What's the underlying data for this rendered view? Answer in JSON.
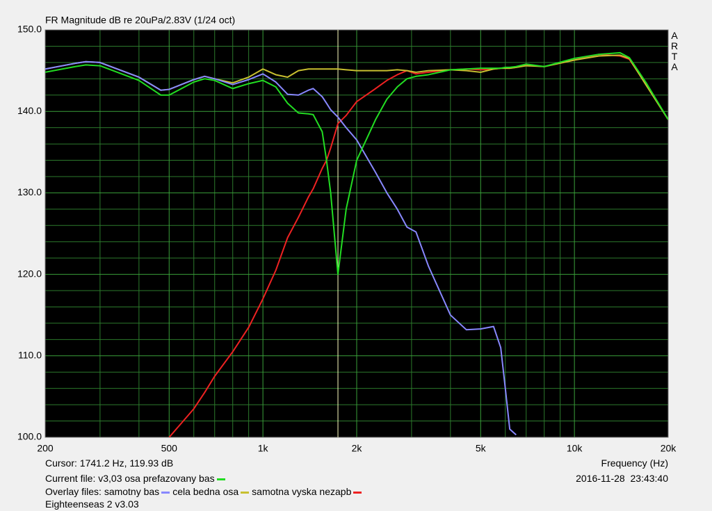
{
  "chart_data": {
    "type": "line",
    "title": "FR Magnitude dB re 20uPa/2.83V (1/24 oct)",
    "brand": "ARTA",
    "xlabel": "Frequency (Hz)",
    "cursor_text": "Cursor: 1741.2 Hz, 119.93 dB",
    "cursor_x": 1741.2,
    "cursor_color": "#ffffc0",
    "timestamp": "2016-11-28  23:43:40",
    "current_label": "Current file:",
    "overlay_label": "Overlay files:",
    "footer": "Eighteenseas 2 v3.03",
    "xscale": "log",
    "grid": true,
    "xlim": [
      200,
      20000
    ],
    "ylim": [
      100,
      150
    ],
    "xticks": [
      200,
      500,
      {
        "value": 1000,
        "label": "1k"
      },
      {
        "value": 2000,
        "label": "2k"
      },
      {
        "value": 5000,
        "label": "5k"
      },
      {
        "value": 10000,
        "label": "10k"
      },
      {
        "value": 20000,
        "label": "20k"
      }
    ],
    "xminorticks": [
      300,
      400,
      600,
      700,
      800,
      900,
      3000,
      4000,
      6000,
      7000,
      8000,
      9000
    ],
    "yticks": [
      {
        "value": 100,
        "label": "100.0"
      },
      {
        "value": 110,
        "label": "110.0"
      },
      {
        "value": 120,
        "label": "120.0"
      },
      {
        "value": 130,
        "label": "130.0"
      },
      {
        "value": 140,
        "label": "140.0"
      },
      {
        "value": 150,
        "label": "150.0"
      }
    ],
    "yminorticks": [
      102,
      104,
      106,
      108,
      112,
      114,
      116,
      118,
      122,
      124,
      126,
      128,
      132,
      134,
      136,
      138,
      142,
      144,
      146,
      148
    ],
    "x": [
      200,
      250,
      270,
      300,
      400,
      470,
      500,
      600,
      650,
      700,
      800,
      900,
      1000,
      1100,
      1200,
      1300,
      1400,
      1450,
      1550,
      1600,
      1650,
      1741,
      1850,
      2000,
      2300,
      2500,
      2700,
      2900,
      3100,
      3400,
      4000,
      4500,
      5000,
      5500,
      5800,
      6000,
      6200,
      6500,
      7000,
      8000,
      10000,
      12000,
      14000,
      15000,
      17000,
      20000
    ],
    "series": [
      {
        "name": "v3,03 osa prefazovany bas",
        "color": "#22dd22",
        "values": [
          144.8,
          145.5,
          145.7,
          145.6,
          143.8,
          142.0,
          142.0,
          143.6,
          144.0,
          143.8,
          142.8,
          143.4,
          143.8,
          143.0,
          141.0,
          139.8,
          139.7,
          139.6,
          137.5,
          134,
          130,
          120,
          128,
          134,
          139,
          141.5,
          143,
          144,
          144.3,
          144.5,
          145.1,
          145.2,
          145.3,
          145.3,
          145.3,
          145.4,
          145.4,
          145.5,
          145.8,
          145.5,
          146.5,
          147.0,
          147.2,
          146.6,
          143.5,
          139
        ]
      },
      {
        "name": "samotny bas",
        "color": "#8888ff",
        "values": [
          145.2,
          145.9,
          146.1,
          146.0,
          144.2,
          142.6,
          142.7,
          143.9,
          144.3,
          144.0,
          143.3,
          143.9,
          144.6,
          143.6,
          142.1,
          142.0,
          142.6,
          142.8,
          141.8,
          141,
          140.2,
          139.3,
          138,
          136.5,
          132.5,
          130,
          128,
          125.8,
          125.2,
          121,
          115,
          113.2,
          113.3,
          113.6,
          111,
          106,
          101,
          100.3,
          null,
          null,
          null,
          null,
          null,
          null,
          null,
          null
        ]
      },
      {
        "name": "cela bedna osa",
        "color": "#c8c030",
        "values": [
          145.2,
          145.9,
          146.1,
          146.0,
          144.2,
          142.6,
          142.7,
          143.9,
          144.3,
          144.0,
          143.5,
          144.2,
          145.2,
          144.5,
          144.2,
          145.0,
          145.2,
          145.2,
          145.2,
          145.2,
          145.2,
          145.2,
          145.1,
          145.0,
          145.0,
          145.0,
          145.1,
          145.0,
          144.8,
          145.0,
          145.1,
          145.0,
          144.8,
          145.2,
          145.3,
          145.3,
          145.3,
          145.4,
          145.6,
          145.5,
          146.3,
          146.8,
          146.9,
          146.5,
          143.2,
          139.0
        ]
      },
      {
        "name": "samotna vyska nezapb",
        "color": "#ee2222",
        "values": [
          null,
          null,
          null,
          null,
          null,
          null,
          100,
          103.5,
          105.5,
          107.5,
          110.5,
          113.5,
          117,
          120.5,
          124.5,
          127,
          129.5,
          130.5,
          133,
          134,
          135.5,
          138.5,
          139.5,
          141.2,
          142.8,
          143.8,
          144.5,
          145,
          144.6,
          144.8,
          145.1,
          145.2,
          145.1,
          145.2,
          145.3,
          145.3,
          145.3,
          145.4,
          145.7,
          145.5,
          146.3,
          147.0,
          146.8,
          146.4,
          143.3,
          139.0
        ]
      }
    ]
  }
}
